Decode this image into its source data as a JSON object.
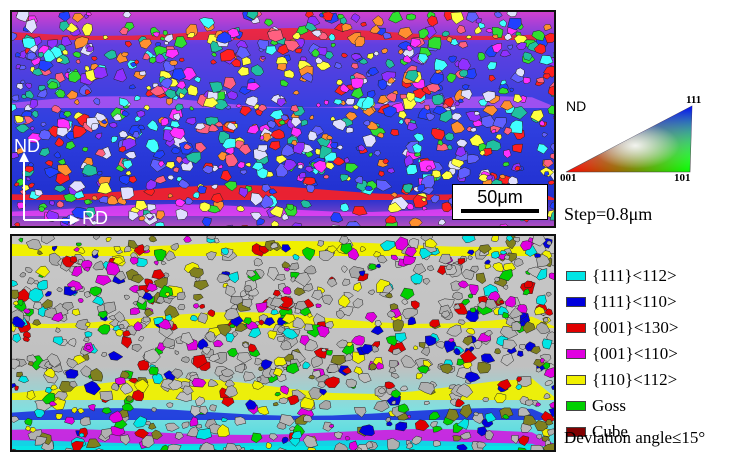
{
  "ipf_panel": {
    "nd_label": "ND",
    "rd_label": "RD",
    "scale_bar_label": "50μm",
    "step_label": "Step=0.8μm"
  },
  "ipf_key": {
    "direction_label": "ND",
    "corner_001": "001",
    "corner_101": "101",
    "corner_111": "111"
  },
  "texture_legend": {
    "items": [
      {
        "label": "{111}<112>",
        "color": "#00e5e5"
      },
      {
        "label": "{111}<110>",
        "color": "#0000dd"
      },
      {
        "label": "{001}<130>",
        "color": "#e00000"
      },
      {
        "label": "{001}<110>",
        "color": "#e000e0"
      },
      {
        "label": "{110}<112>",
        "color": "#f0f000"
      },
      {
        "label": "Goss",
        "color": "#00d000"
      },
      {
        "label": "Cube",
        "color": "#800000"
      }
    ],
    "deviation_label": "Deviation angle≤15°"
  }
}
